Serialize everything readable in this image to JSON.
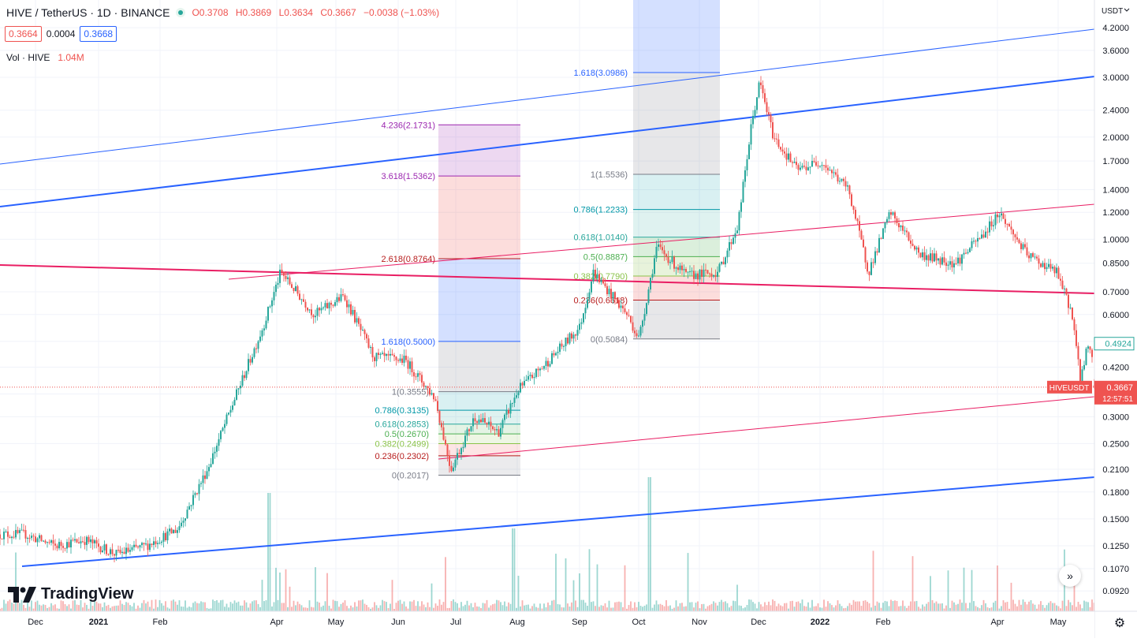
{
  "header": {
    "symbol": "HIVE / TetherUS · 1D · BINANCE",
    "open": "O0.3708",
    "high": "H0.3869",
    "low": "L0.3634",
    "close": "C0.3667",
    "change": "−0.0038 (−1.03%)"
  },
  "prices": {
    "bid": "0.3664",
    "spread": "0.0004",
    "ask": "0.3668"
  },
  "volume": {
    "label": "Vol · HIVE",
    "value": "1.04M"
  },
  "axis": {
    "currency": "USDT",
    "ticks": [
      "4.2000",
      "3.6000",
      "3.0000",
      "2.4000",
      "2.0000",
      "1.7000",
      "1.4000",
      "1.2000",
      "1.0000",
      "0.8500",
      "0.7000",
      "0.6000",
      "0.5000",
      "0.4200",
      "0.3500",
      "0.3000",
      "0.2500",
      "0.2100",
      "0.1800",
      "0.1500",
      "0.1250",
      "0.1070",
      "0.0920"
    ],
    "months": [
      "Dec",
      "2021",
      "Feb",
      "Apr",
      "May",
      "Jun",
      "Jul",
      "Aug",
      "Sep",
      "Oct",
      "Nov",
      "Dec",
      "2022",
      "Feb",
      "Apr",
      "May"
    ]
  },
  "labels": {
    "alt_price": "0.4924",
    "ticker": "HIVEUSDT",
    "last_price": "0.3667",
    "countdown": "12:57:51"
  },
  "fib_ext1": [
    {
      "label": "4.236(2.1731)",
      "color": "#9c27b0"
    },
    {
      "label": "3.618(1.5362)",
      "color": "#9c27b0"
    },
    {
      "label": "2.618(0.8764)",
      "color": "#b71c1c"
    },
    {
      "label": "1.618(0.5000)",
      "color": "#2962ff"
    }
  ],
  "fib_ret1": [
    {
      "label": "1(0.3555)",
      "color": "#787b86"
    },
    {
      "label": "0.786(0.3135)",
      "color": "#0097a7"
    },
    {
      "label": "0.618(0.2853)",
      "color": "#26a69a"
    },
    {
      "label": "0.5(0.2670)",
      "color": "#4caf50"
    },
    {
      "label": "0.382(0.2499)",
      "color": "#8bc34a"
    },
    {
      "label": "0.236(0.2302)",
      "color": "#b71c1c"
    },
    {
      "label": "0(0.2017)",
      "color": "#787b86"
    }
  ],
  "fib_ext2": [
    {
      "label": "1.618(3.0986)",
      "color": "#2962ff"
    }
  ],
  "fib_ret2": [
    {
      "label": "1(1.5536)",
      "color": "#787b86"
    },
    {
      "label": "0.786(1.2233)",
      "color": "#0097a7"
    },
    {
      "label": "0.618(1.0140)",
      "color": "#26a69a"
    },
    {
      "label": "0.5(0.8887)",
      "color": "#4caf50"
    },
    {
      "label": "0.382(0.7790)",
      "color": "#8bc34a"
    },
    {
      "label": "0.236(0.6618)",
      "color": "#b71c1c"
    },
    {
      "label": "0(0.5084)",
      "color": "#787b86"
    }
  ],
  "brand": "TradingView",
  "colors": {
    "up": "#26a69a",
    "down": "#ef5350",
    "channel": "#2962ff",
    "trend": "#e91e63"
  },
  "chart_data": {
    "type": "candlestick",
    "title": "HIVE / TetherUS · 1D · BINANCE",
    "y_scale": "log",
    "ylim": [
      0.085,
      4.4
    ],
    "ohlc_last": {
      "open": 0.3708,
      "high": 0.3869,
      "low": 0.3634,
      "close": 0.3667
    },
    "price_path": [
      {
        "date": "2020-11-25",
        "close": 0.135
      },
      {
        "date": "2020-12-10",
        "close": 0.125
      },
      {
        "date": "2020-12-25",
        "close": 0.13
      },
      {
        "date": "2021-01-10",
        "close": 0.118
      },
      {
        "date": "2021-01-25",
        "close": 0.125
      },
      {
        "date": "2021-02-10",
        "close": 0.14
      },
      {
        "date": "2021-02-25",
        "close": 0.21
      },
      {
        "date": "2021-03-10",
        "close": 0.33
      },
      {
        "date": "2021-03-25",
        "close": 0.55
      },
      {
        "date": "2021-04-03",
        "close": 0.8
      },
      {
        "date": "2021-04-20",
        "close": 0.6
      },
      {
        "date": "2021-05-05",
        "close": 0.68
      },
      {
        "date": "2021-05-20",
        "close": 0.45
      },
      {
        "date": "2021-06-05",
        "close": 0.44
      },
      {
        "date": "2021-06-20",
        "close": 0.34
      },
      {
        "date": "2021-06-28",
        "close": 0.21
      },
      {
        "date": "2021-07-10",
        "close": 0.3
      },
      {
        "date": "2021-07-22",
        "close": 0.27
      },
      {
        "date": "2021-08-01",
        "close": 0.36
      },
      {
        "date": "2021-08-15",
        "close": 0.43
      },
      {
        "date": "2021-09-01",
        "close": 0.55
      },
      {
        "date": "2021-09-08",
        "close": 0.8
      },
      {
        "date": "2021-09-25",
        "close": 0.6
      },
      {
        "date": "2021-10-01",
        "close": 0.51
      },
      {
        "date": "2021-10-10",
        "close": 0.95
      },
      {
        "date": "2021-10-25",
        "close": 0.78
      },
      {
        "date": "2021-11-10",
        "close": 0.8
      },
      {
        "date": "2021-11-20",
        "close": 1.1
      },
      {
        "date": "2021-11-27",
        "close": 2.2
      },
      {
        "date": "2021-12-01",
        "close": 2.9
      },
      {
        "date": "2021-12-08",
        "close": 2.0
      },
      {
        "date": "2021-12-20",
        "close": 1.6
      },
      {
        "date": "2022-01-01",
        "close": 1.7
      },
      {
        "date": "2022-01-15",
        "close": 1.4
      },
      {
        "date": "2022-01-25",
        "close": 0.8
      },
      {
        "date": "2022-02-05",
        "close": 1.2
      },
      {
        "date": "2022-02-20",
        "close": 0.9
      },
      {
        "date": "2022-03-10",
        "close": 0.85
      },
      {
        "date": "2022-03-25",
        "close": 1.05
      },
      {
        "date": "2022-04-01",
        "close": 1.2
      },
      {
        "date": "2022-04-15",
        "close": 0.9
      },
      {
        "date": "2022-04-30",
        "close": 0.8
      },
      {
        "date": "2022-05-08",
        "close": 0.6
      },
      {
        "date": "2022-05-12",
        "close": 0.38
      },
      {
        "date": "2022-05-16",
        "close": 0.5
      },
      {
        "date": "2022-05-21",
        "close": 0.3667
      }
    ]
  }
}
